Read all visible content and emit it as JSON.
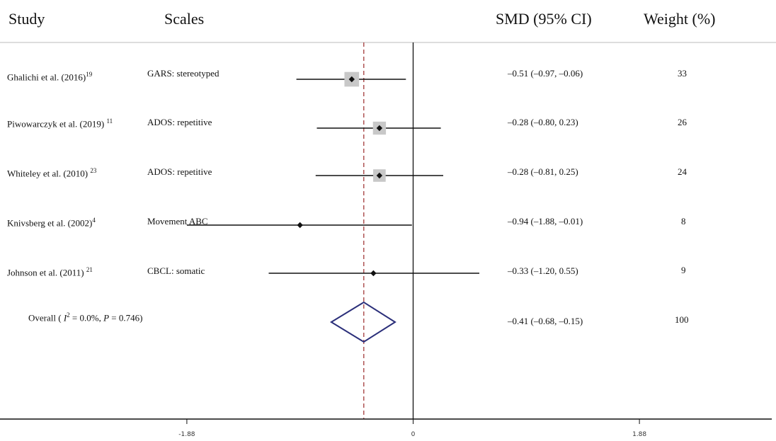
{
  "headers": {
    "study": "Study",
    "scales": "Scales",
    "smd": "SMD (95% CI)",
    "weight": "Weight (%)"
  },
  "rows": [
    {
      "study": "Ghalichi et al. (2016)",
      "ref": "19",
      "scale": "GARS: stereotyped",
      "ci_text": "–0.51 (–0.97, –0.06)",
      "weight_text": "33"
    },
    {
      "study": "Piwowarczyk et al. (2019)",
      "ref": "11",
      "scale": "ADOS: repetitive",
      "ci_text": "–0.28 (–0.80, 0.23)",
      "weight_text": "26"
    },
    {
      "study": "Whiteley et al. (2010)",
      "ref": "23",
      "scale": "ADOS: repetitive",
      "ci_text": "–0.28 (–0.81, 0.25)",
      "weight_text": "24"
    },
    {
      "study": "Knivsberg et al. (2002)",
      "ref": "4",
      "scale": "Movement ABC",
      "ci_text": "–0.94 (–1.88, –0.01)",
      "weight_text": "8"
    },
    {
      "study": "Johnson et al. (2011)",
      "ref": "21",
      "scale": "CBCL: somatic",
      "ci_text": "–0.33 (–1.20, 0.55)",
      "weight_text": "9"
    }
  ],
  "overall": {
    "prefix": "Overall (",
    "i2_symbol": "I",
    "i2_exp": "2",
    "i2_text": " = 0.0%, ",
    "p_symbol": "P",
    "p_text": " = 0.746)",
    "ci_text": "–0.41 (–0.68, –0.15)",
    "weight_text": "100"
  },
  "chart_data": {
    "type": "forest",
    "x_ticks": [
      -1.88,
      0,
      1.88
    ],
    "x_tick_labels": [
      "-1.88",
      "0",
      "1.88"
    ],
    "xlim": [
      -3.45,
      2.98
    ],
    "null_line": 0,
    "pooled_line": -0.41,
    "studies": [
      {
        "name": "Ghalichi et al. (2016)",
        "smd": -0.51,
        "lower": -0.97,
        "upper": -0.06,
        "weight": 33
      },
      {
        "name": "Piwowarczyk et al. (2019)",
        "smd": -0.28,
        "lower": -0.8,
        "upper": 0.23,
        "weight": 26
      },
      {
        "name": "Whiteley et al. (2010)",
        "smd": -0.28,
        "lower": -0.81,
        "upper": 0.25,
        "weight": 24
      },
      {
        "name": "Knivsberg et al. (2002)",
        "smd": -0.94,
        "lower": -1.88,
        "upper": -0.01,
        "weight": 8
      },
      {
        "name": "Johnson et al. (2011)",
        "smd": -0.33,
        "lower": -1.2,
        "upper": 0.55,
        "weight": 9
      }
    ],
    "overall": {
      "smd": -0.41,
      "lower": -0.68,
      "upper": -0.15,
      "weight": 100
    },
    "colors": {
      "line": "#111111",
      "box": "#c8c8c8",
      "diamond": "#2b2f7a",
      "pooled_line": "#a33a3a",
      "separator": "#bbbbbb"
    }
  }
}
